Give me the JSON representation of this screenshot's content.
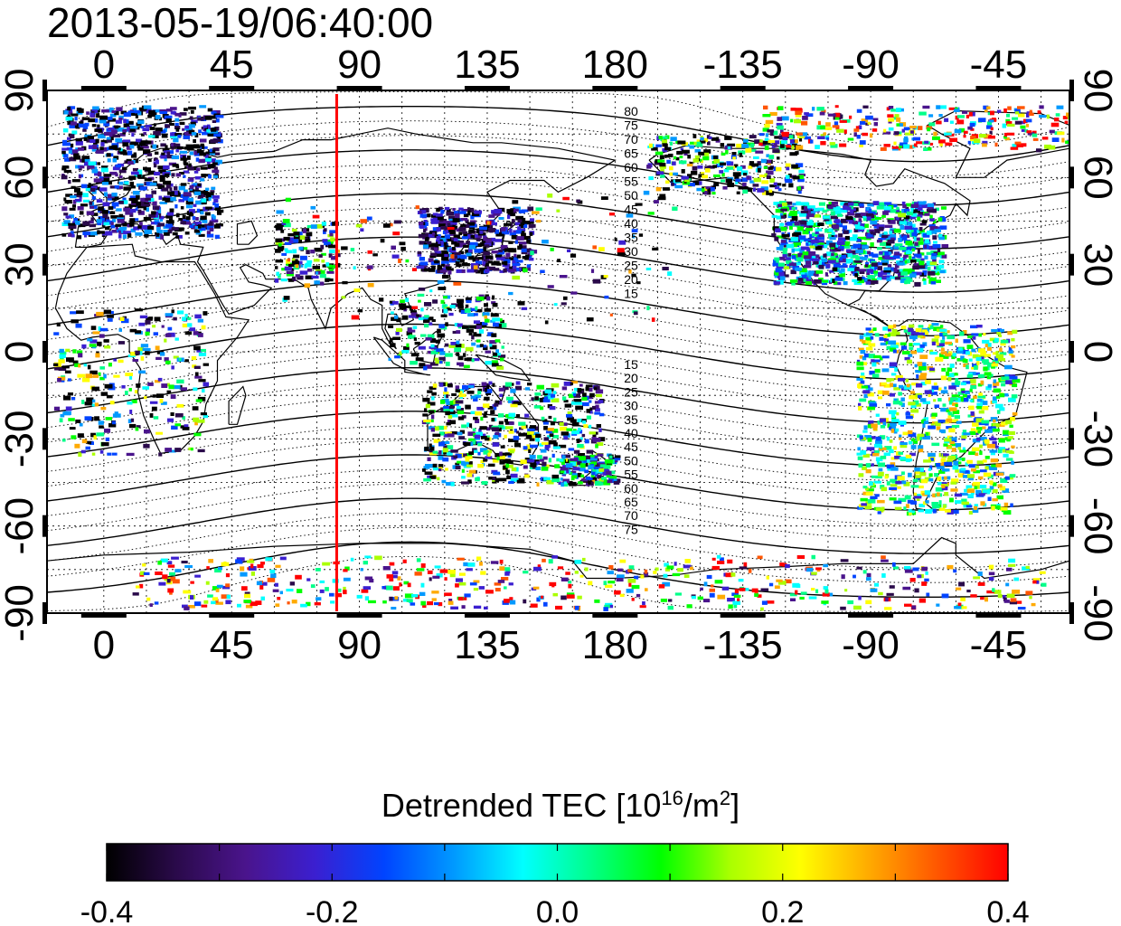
{
  "title": "2013-05-19/06:40:00",
  "map": {
    "x_tick_labels": [
      "0",
      "45",
      "90",
      "135",
      "180",
      "-135",
      "-90",
      "-45"
    ],
    "x_tick_lon": [
      0,
      45,
      90,
      135,
      180,
      225,
      270,
      315
    ],
    "y_tick_labels": [
      "90",
      "60",
      "30",
      "0",
      "-30",
      "-60",
      "-90"
    ],
    "y_tick_lat": [
      90,
      60,
      30,
      0,
      -30,
      -60,
      -90
    ],
    "lon_range": [
      -20,
      340
    ],
    "lat_range": [
      -90,
      90
    ],
    "marker_lon": 82,
    "marker_color": "#ff0000",
    "mag_lat_labels_north": [
      "80",
      "75",
      "70",
      "65",
      "60",
      "55",
      "50",
      "45",
      "40",
      "35",
      "30",
      "25",
      "20",
      "15"
    ],
    "mag_lat_labels_south": [
      "15",
      "20",
      "25",
      "30",
      "35",
      "40",
      "45",
      "50",
      "55",
      "60",
      "65",
      "70",
      "75"
    ]
  },
  "colorbar": {
    "title_main": "Detrended TEC  [10",
    "title_exp1": "16",
    "title_mid": "/m",
    "title_exp2": "2",
    "title_end": "]",
    "tick_labels": [
      "-0.4",
      "-0.2",
      "0.0",
      "0.2",
      "0.4"
    ],
    "min": -0.4,
    "max": 0.4,
    "colors": [
      "#000000",
      "#2a0a4a",
      "#4a148c",
      "#3b1fd0",
      "#0044ff",
      "#0099ff",
      "#00ffff",
      "#00ff88",
      "#00ff00",
      "#aaff00",
      "#ffff00",
      "#ffaa00",
      "#ff5500",
      "#ff0000"
    ]
  }
}
